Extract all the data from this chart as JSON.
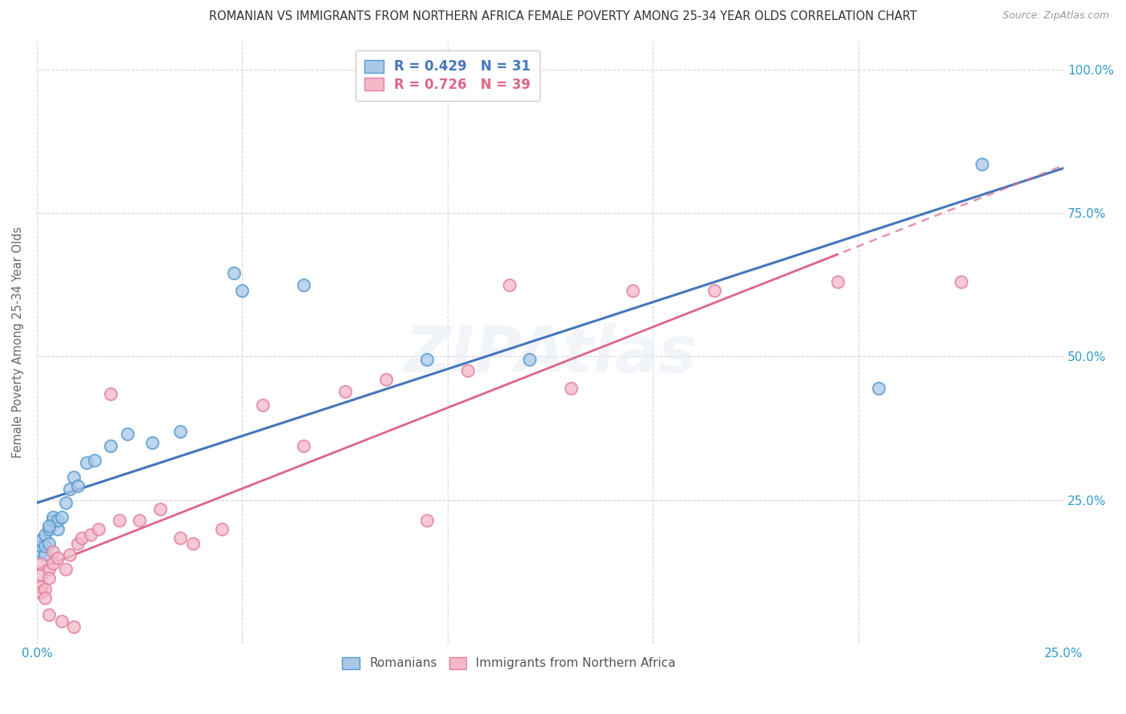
{
  "title": "ROMANIAN VS IMMIGRANTS FROM NORTHERN AFRICA FEMALE POVERTY AMONG 25-34 YEAR OLDS CORRELATION CHART",
  "source": "Source: ZipAtlas.com",
  "ylabel": "Female Poverty Among 25-34 Year Olds",
  "xlim": [
    0.0,
    0.25
  ],
  "ylim": [
    0.0,
    1.05
  ],
  "romanian_R": 0.429,
  "romanian_N": 31,
  "nafrica_R": 0.726,
  "nafrica_N": 39,
  "blue_fill": "#a8c8e8",
  "blue_edge": "#5599cc",
  "pink_fill": "#f4b8c8",
  "pink_edge": "#e080a0",
  "blue_line": "#4477bb",
  "pink_line": "#dd6688",
  "background_color": "#ffffff",
  "grid_color": "#cccccc",
  "romanian_x": [
    0.001,
    0.001,
    0.001,
    0.002,
    0.002,
    0.002,
    0.003,
    0.003,
    0.004,
    0.004,
    0.005,
    0.005,
    0.006,
    0.007,
    0.008,
    0.009,
    0.01,
    0.012,
    0.014,
    0.018,
    0.022,
    0.028,
    0.035,
    0.048,
    0.05,
    0.065,
    0.095,
    0.12,
    0.205,
    0.23,
    0.003
  ],
  "romanian_y": [
    0.16,
    0.17,
    0.18,
    0.155,
    0.17,
    0.19,
    0.175,
    0.2,
    0.215,
    0.22,
    0.2,
    0.215,
    0.22,
    0.245,
    0.27,
    0.29,
    0.275,
    0.315,
    0.32,
    0.345,
    0.365,
    0.35,
    0.37,
    0.645,
    0.615,
    0.625,
    0.495,
    0.495,
    0.445,
    0.835,
    0.205
  ],
  "nafrica_x": [
    0.001,
    0.001,
    0.001,
    0.001,
    0.002,
    0.002,
    0.003,
    0.003,
    0.003,
    0.004,
    0.004,
    0.005,
    0.006,
    0.007,
    0.008,
    0.009,
    0.01,
    0.011,
    0.013,
    0.015,
    0.018,
    0.02,
    0.025,
    0.03,
    0.035,
    0.038,
    0.045,
    0.055,
    0.065,
    0.075,
    0.085,
    0.095,
    0.105,
    0.115,
    0.13,
    0.145,
    0.165,
    0.195,
    0.225
  ],
  "nafrica_y": [
    0.1,
    0.09,
    0.12,
    0.14,
    0.095,
    0.08,
    0.13,
    0.115,
    0.05,
    0.14,
    0.16,
    0.15,
    0.04,
    0.13,
    0.155,
    0.03,
    0.175,
    0.185,
    0.19,
    0.2,
    0.435,
    0.215,
    0.215,
    0.235,
    0.185,
    0.175,
    0.2,
    0.415,
    0.345,
    0.44,
    0.46,
    0.215,
    0.475,
    0.625,
    0.445,
    0.615,
    0.615,
    0.63,
    0.63
  ]
}
